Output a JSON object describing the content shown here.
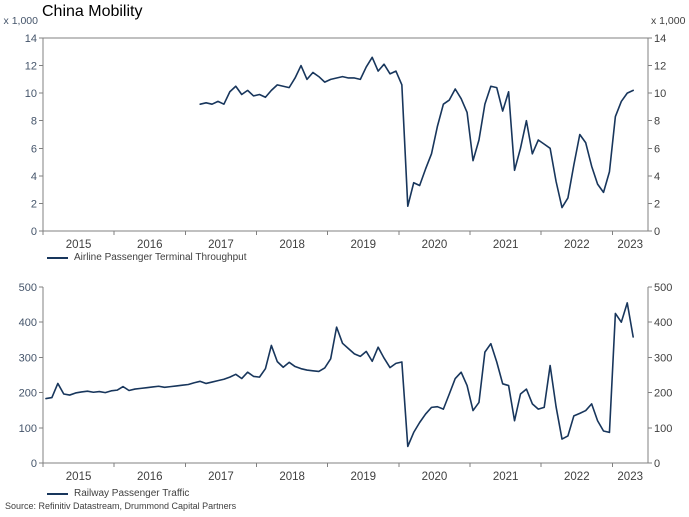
{
  "title": "China Mobility",
  "source_note": "Source: Refinitiv Datastream, Drummond Capital Partners",
  "colors": {
    "series_line": "#18365C",
    "axis": "#808080",
    "left_tick_text": "#44546A",
    "right_tick_text": "#404040",
    "year_tick_text": "#404040",
    "title_text": "#000000",
    "legend_text": "#404040",
    "background": "#FFFFFF"
  },
  "chart_data": [
    {
      "type": "line",
      "name": "airline",
      "legend": "Airline Passenger Terminal Throughput",
      "unit_label_left": "x 1,000",
      "unit_label_right": "x 1,000",
      "ylim": [
        0,
        14
      ],
      "yticks": [
        0,
        2,
        4,
        6,
        8,
        10,
        12,
        14
      ],
      "xlim_years": [
        2015,
        2023.5
      ],
      "year_ticks": [
        2015,
        2016,
        2017,
        2018,
        2019,
        2020,
        2021,
        2022,
        2023
      ],
      "grid": false,
      "legend_position": "bottom-left",
      "frequency": "monthly",
      "series_start": {
        "year": 2017,
        "month": 3
      },
      "values": [
        9.2,
        9.3,
        9.2,
        9.4,
        9.2,
        10.1,
        10.5,
        9.9,
        10.2,
        9.8,
        9.9,
        9.7,
        10.2,
        10.6,
        10.5,
        10.4,
        11.1,
        12.0,
        11.0,
        11.5,
        11.2,
        10.8,
        11.0,
        11.1,
        11.2,
        11.1,
        11.1,
        11.0,
        11.9,
        12.6,
        11.6,
        12.1,
        11.4,
        11.6,
        10.6,
        1.8,
        3.5,
        3.3,
        4.5,
        5.6,
        7.6,
        9.2,
        9.5,
        10.3,
        9.6,
        8.6,
        5.1,
        6.6,
        9.2,
        10.5,
        10.4,
        8.7,
        10.1,
        4.4,
        6.0,
        8.0,
        5.6,
        6.6,
        6.3,
        6.0,
        3.6,
        1.7,
        2.4,
        4.8,
        7.0,
        6.4,
        4.7,
        3.4,
        2.8,
        4.3,
        8.3,
        9.4,
        10.0,
        10.2
      ]
    },
    {
      "type": "line",
      "name": "railway",
      "legend": "Railway Passenger Traffic",
      "ylim": [
        0,
        500
      ],
      "yticks": [
        0,
        100,
        200,
        300,
        400,
        500
      ],
      "xlim_years": [
        2015,
        2023.5
      ],
      "year_ticks": [
        2015,
        2016,
        2017,
        2018,
        2019,
        2020,
        2021,
        2022,
        2023
      ],
      "grid": false,
      "legend_position": "bottom-left",
      "frequency": "monthly",
      "series_start": {
        "year": 2015,
        "month": 1
      },
      "values": [
        183,
        186,
        226,
        196,
        193,
        199,
        202,
        204,
        201,
        203,
        200,
        205,
        207,
        217,
        206,
        210,
        212,
        214,
        216,
        218,
        215,
        217,
        219,
        221,
        223,
        228,
        232,
        226,
        230,
        234,
        238,
        244,
        252,
        240,
        258,
        246,
        244,
        268,
        334,
        288,
        272,
        286,
        274,
        268,
        264,
        262,
        260,
        270,
        296,
        386,
        340,
        325,
        310,
        303,
        317,
        289,
        329,
        298,
        271,
        283,
        287,
        47,
        87,
        115,
        139,
        158,
        160,
        153,
        196,
        240,
        258,
        220,
        149,
        172,
        315,
        339,
        287,
        225,
        220,
        120,
        196,
        210,
        168,
        153,
        158,
        277,
        160,
        68,
        77,
        134,
        141,
        149,
        168,
        120,
        91,
        87,
        425,
        400,
        455,
        358
      ]
    }
  ]
}
